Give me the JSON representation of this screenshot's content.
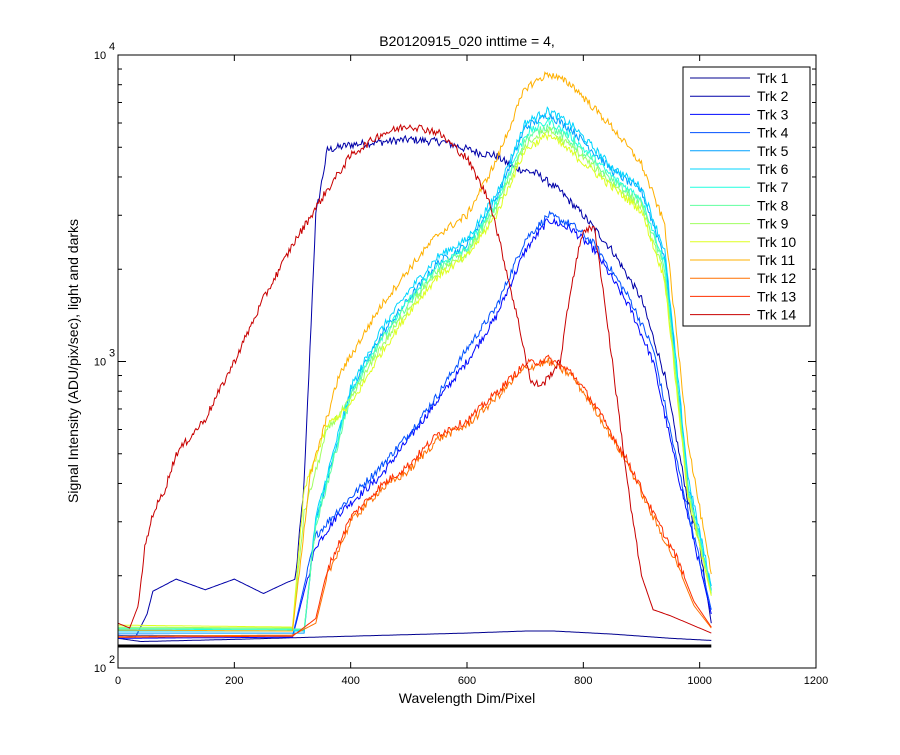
{
  "chart_data": {
    "type": "line",
    "title": "B20120915_020 inttime = 4,",
    "xlabel": "Wavelength Dim/Pixel",
    "ylabel": "Signal Intensity (ADU/pix/sec), light and darks",
    "xlim": [
      0,
      1200
    ],
    "ylim": [
      100,
      10000
    ],
    "yscale": "log",
    "xticks": [
      "0",
      "200",
      "400",
      "600",
      "800",
      "1000",
      "1200"
    ],
    "yticks": [
      {
        "base": "10",
        "exp": "2"
      },
      {
        "base": "10",
        "exp": "3"
      },
      {
        "base": "10",
        "exp": "4"
      }
    ],
    "grid": false,
    "legend_position": "top-right",
    "series": [
      {
        "name": "Trk 1",
        "color": "#00008f",
        "points": [
          [
            0,
            125
          ],
          [
            40,
            122
          ],
          [
            200,
            124
          ],
          [
            400,
            127
          ],
          [
            600,
            130
          ],
          [
            700,
            132
          ],
          [
            750,
            132
          ],
          [
            850,
            129
          ],
          [
            950,
            125
          ],
          [
            1020,
            123
          ]
        ]
      },
      {
        "name": "Trk 2",
        "color": "#0000a8",
        "points": [
          [
            0,
            128
          ],
          [
            30,
            126
          ],
          [
            50,
            150
          ],
          [
            60,
            178
          ],
          [
            100,
            195
          ],
          [
            150,
            180
          ],
          [
            200,
            195
          ],
          [
            250,
            175
          ],
          [
            290,
            190
          ],
          [
            305,
            195
          ],
          [
            320,
            400
          ],
          [
            340,
            3000
          ],
          [
            360,
            4900
          ],
          [
            400,
            5100
          ],
          [
            450,
            5200
          ],
          [
            500,
            5300
          ],
          [
            560,
            5200
          ],
          [
            620,
            4800
          ],
          [
            650,
            4700
          ],
          [
            680,
            4300
          ],
          [
            720,
            4100
          ],
          [
            760,
            3600
          ],
          [
            800,
            3000
          ],
          [
            850,
            2300
          ],
          [
            900,
            1600
          ],
          [
            940,
            900
          ],
          [
            980,
            350
          ],
          [
            1000,
            250
          ],
          [
            1020,
            140
          ]
        ]
      },
      {
        "name": "Trk 3",
        "color": "#0008ff",
        "points": [
          [
            0,
            125
          ],
          [
            300,
            126
          ],
          [
            340,
            250
          ],
          [
            380,
            320
          ],
          [
            450,
            420
          ],
          [
            500,
            560
          ],
          [
            550,
            750
          ],
          [
            600,
            1000
          ],
          [
            650,
            1400
          ],
          [
            700,
            2300
          ],
          [
            740,
            2900
          ],
          [
            780,
            2700
          ],
          [
            820,
            2300
          ],
          [
            880,
            1500
          ],
          [
            920,
            1000
          ],
          [
            960,
            450
          ],
          [
            990,
            260
          ],
          [
            1020,
            150
          ]
        ]
      },
      {
        "name": "Trk 4",
        "color": "#0050ff",
        "points": [
          [
            0,
            128
          ],
          [
            300,
            127
          ],
          [
            340,
            270
          ],
          [
            380,
            330
          ],
          [
            450,
            450
          ],
          [
            500,
            580
          ],
          [
            550,
            780
          ],
          [
            600,
            1100
          ],
          [
            650,
            1500
          ],
          [
            700,
            2500
          ],
          [
            740,
            3000
          ],
          [
            780,
            2800
          ],
          [
            820,
            2400
          ],
          [
            880,
            1600
          ],
          [
            920,
            1100
          ],
          [
            960,
            480
          ],
          [
            990,
            270
          ],
          [
            1020,
            155
          ]
        ]
      },
      {
        "name": "Trk 5",
        "color": "#00a0ff",
        "points": [
          [
            0,
            130
          ],
          [
            320,
            130
          ],
          [
            340,
            300
          ],
          [
            400,
            800
          ],
          [
            450,
            1200
          ],
          [
            500,
            1600
          ],
          [
            550,
            2100
          ],
          [
            600,
            2400
          ],
          [
            650,
            3400
          ],
          [
            700,
            5800
          ],
          [
            740,
            6400
          ],
          [
            780,
            5700
          ],
          [
            850,
            4200
          ],
          [
            900,
            3600
          ],
          [
            940,
            2200
          ],
          [
            980,
            400
          ],
          [
            1020,
            180
          ]
        ]
      },
      {
        "name": "Trk 6",
        "color": "#00d4ff",
        "points": [
          [
            0,
            132
          ],
          [
            320,
            132
          ],
          [
            340,
            310
          ],
          [
            400,
            820
          ],
          [
            450,
            1250
          ],
          [
            500,
            1700
          ],
          [
            550,
            2200
          ],
          [
            600,
            2500
          ],
          [
            650,
            3500
          ],
          [
            700,
            6000
          ],
          [
            740,
            6600
          ],
          [
            780,
            5900
          ],
          [
            850,
            4300
          ],
          [
            900,
            3700
          ],
          [
            940,
            2300
          ],
          [
            980,
            420
          ],
          [
            1020,
            185
          ]
        ]
      },
      {
        "name": "Trk 7",
        "color": "#20ffdf",
        "points": [
          [
            0,
            134
          ],
          [
            320,
            133
          ],
          [
            340,
            300
          ],
          [
            400,
            790
          ],
          [
            450,
            1180
          ],
          [
            500,
            1580
          ],
          [
            550,
            2050
          ],
          [
            600,
            2350
          ],
          [
            650,
            3300
          ],
          [
            700,
            5500
          ],
          [
            740,
            6100
          ],
          [
            780,
            5400
          ],
          [
            850,
            4000
          ],
          [
            900,
            3400
          ],
          [
            940,
            2100
          ],
          [
            980,
            390
          ],
          [
            1020,
            178
          ]
        ]
      },
      {
        "name": "Trk 8",
        "color": "#60ff9f",
        "points": [
          [
            0,
            135
          ],
          [
            320,
            134
          ],
          [
            340,
            290
          ],
          [
            400,
            770
          ],
          [
            450,
            1150
          ],
          [
            500,
            1550
          ],
          [
            550,
            2000
          ],
          [
            600,
            2300
          ],
          [
            650,
            3200
          ],
          [
            700,
            5300
          ],
          [
            740,
            5900
          ],
          [
            780,
            5200
          ],
          [
            850,
            3900
          ],
          [
            900,
            3300
          ],
          [
            940,
            2000
          ],
          [
            980,
            380
          ],
          [
            1020,
            176
          ]
        ]
      },
      {
        "name": "Trk 9",
        "color": "#9fff60",
        "points": [
          [
            0,
            136
          ],
          [
            300,
            135
          ],
          [
            320,
            320
          ],
          [
            360,
            600
          ],
          [
            400,
            750
          ],
          [
            450,
            1100
          ],
          [
            500,
            1500
          ],
          [
            550,
            1950
          ],
          [
            600,
            2250
          ],
          [
            650,
            3100
          ],
          [
            700,
            5100
          ],
          [
            740,
            5700
          ],
          [
            780,
            5000
          ],
          [
            850,
            3800
          ],
          [
            900,
            3200
          ],
          [
            940,
            1900
          ],
          [
            980,
            370
          ],
          [
            1020,
            174
          ]
        ]
      },
      {
        "name": "Trk 10",
        "color": "#dfff20",
        "points": [
          [
            0,
            138
          ],
          [
            300,
            136
          ],
          [
            320,
            380
          ],
          [
            360,
            620
          ],
          [
            400,
            720
          ],
          [
            450,
            1050
          ],
          [
            500,
            1450
          ],
          [
            550,
            1900
          ],
          [
            600,
            2200
          ],
          [
            650,
            3000
          ],
          [
            700,
            4900
          ],
          [
            740,
            5500
          ],
          [
            780,
            4800
          ],
          [
            850,
            3700
          ],
          [
            900,
            3100
          ],
          [
            940,
            1850
          ],
          [
            980,
            360
          ],
          [
            1020,
            172
          ]
        ]
      },
      {
        "name": "Trk 11",
        "color": "#ffb000",
        "points": [
          [
            0,
            133
          ],
          [
            300,
            132
          ],
          [
            330,
            420
          ],
          [
            380,
            900
          ],
          [
            450,
            1500
          ],
          [
            500,
            2000
          ],
          [
            550,
            2600
          ],
          [
            600,
            3000
          ],
          [
            650,
            4500
          ],
          [
            700,
            7800
          ],
          [
            740,
            8700
          ],
          [
            780,
            8000
          ],
          [
            850,
            5800
          ],
          [
            900,
            4400
          ],
          [
            940,
            2800
          ],
          [
            980,
            550
          ],
          [
            1020,
            200
          ]
        ]
      },
      {
        "name": "Trk 12",
        "color": "#ff7000",
        "points": [
          [
            0,
            127
          ],
          [
            300,
            128
          ],
          [
            340,
            140
          ],
          [
            360,
            200
          ],
          [
            400,
            300
          ],
          [
            450,
            380
          ],
          [
            500,
            440
          ],
          [
            550,
            560
          ],
          [
            600,
            620
          ],
          [
            650,
            760
          ],
          [
            700,
            950
          ],
          [
            740,
            1000
          ],
          [
            780,
            900
          ],
          [
            820,
            700
          ],
          [
            880,
            450
          ],
          [
            920,
            310
          ],
          [
            960,
            220
          ],
          [
            990,
            160
          ],
          [
            1020,
            135
          ]
        ]
      },
      {
        "name": "Trk 13",
        "color": "#ff3000",
        "points": [
          [
            0,
            126
          ],
          [
            300,
            127
          ],
          [
            340,
            145
          ],
          [
            360,
            210
          ],
          [
            400,
            310
          ],
          [
            450,
            390
          ],
          [
            500,
            460
          ],
          [
            550,
            580
          ],
          [
            600,
            640
          ],
          [
            650,
            790
          ],
          [
            700,
            980
          ],
          [
            740,
            1020
          ],
          [
            780,
            920
          ],
          [
            820,
            720
          ],
          [
            880,
            460
          ],
          [
            920,
            320
          ],
          [
            960,
            230
          ],
          [
            990,
            165
          ],
          [
            1020,
            136
          ]
        ]
      },
      {
        "name": "Trk 14",
        "color": "#c80000",
        "points": [
          [
            0,
            140
          ],
          [
            20,
            135
          ],
          [
            35,
            160
          ],
          [
            45,
            240
          ],
          [
            60,
            320
          ],
          [
            80,
            380
          ],
          [
            100,
            500
          ],
          [
            150,
            650
          ],
          [
            200,
            1000
          ],
          [
            250,
            1600
          ],
          [
            300,
            2400
          ],
          [
            350,
            3400
          ],
          [
            400,
            4700
          ],
          [
            450,
            5500
          ],
          [
            500,
            5900
          ],
          [
            550,
            5600
          ],
          [
            600,
            4600
          ],
          [
            640,
            3300
          ],
          [
            670,
            1900
          ],
          [
            690,
            1300
          ],
          [
            710,
            850
          ],
          [
            730,
            840
          ],
          [
            760,
            1000
          ],
          [
            780,
            1800
          ],
          [
            800,
            2700
          ],
          [
            820,
            2700
          ],
          [
            840,
            1400
          ],
          [
            860,
            700
          ],
          [
            880,
            350
          ],
          [
            900,
            200
          ],
          [
            920,
            155
          ],
          [
            950,
            148
          ],
          [
            1020,
            130
          ]
        ]
      },
      {
        "name": "",
        "color": "#000000",
        "points": [
          [
            0,
            118
          ],
          [
            200,
            118
          ],
          [
            400,
            118
          ],
          [
            600,
            118
          ],
          [
            800,
            118
          ],
          [
            1020,
            118
          ]
        ]
      }
    ]
  }
}
